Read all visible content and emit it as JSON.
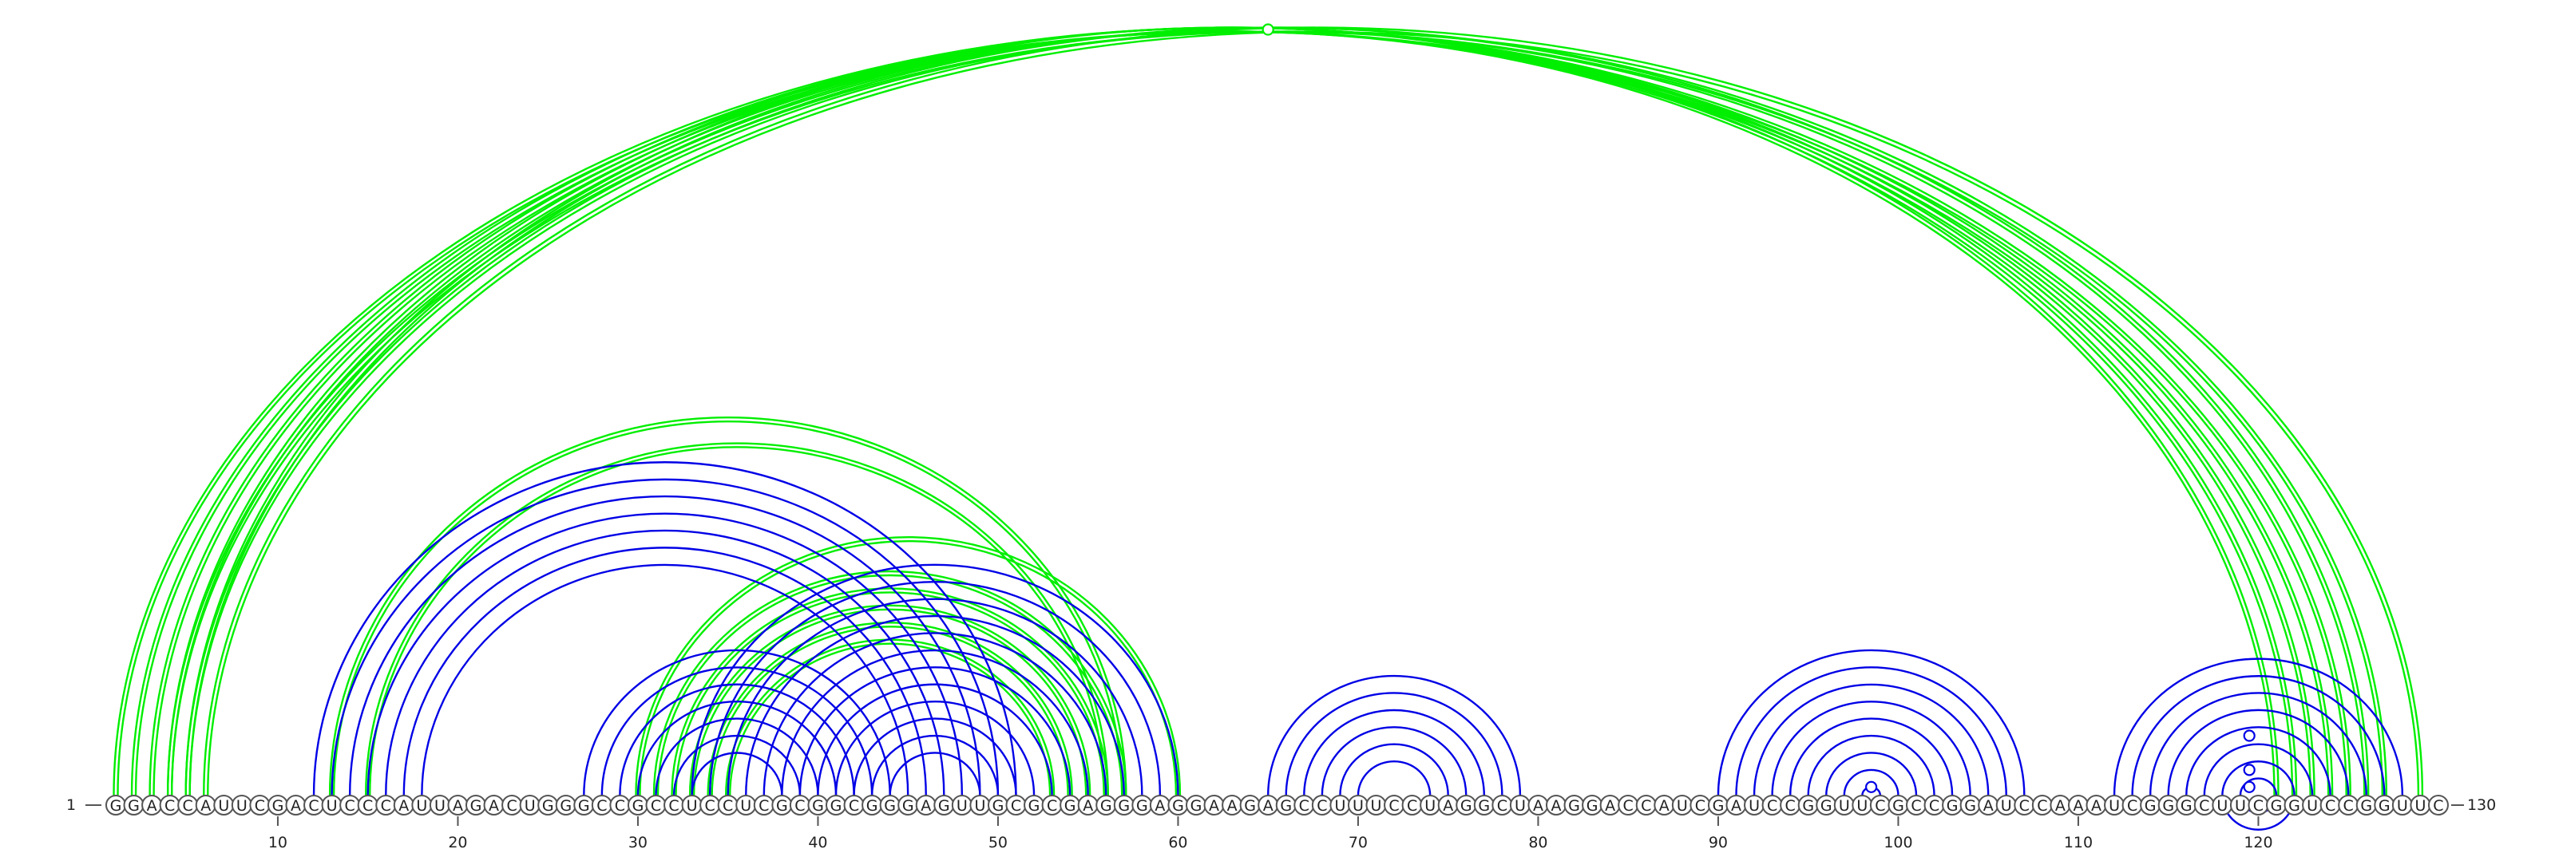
{
  "sequence": "GGACCAUUCGACUCCCAUUAGACUGGGCCGCCUCCUCGCGGCGGGAGUUGCGCGAGGGAGGAAGAGCCUUUCCUAGGCUAAGGACCAUCGAUCCGGUUCGCCGGAUCCAAAUCGGGCUUCGGUCCGGUUC",
  "start_label": "1",
  "end_label": "130",
  "ticks": [
    10,
    20,
    30,
    40,
    50,
    60,
    70,
    80,
    90,
    100,
    110,
    120
  ],
  "colors": {
    "pair": "#0000e6",
    "interaction": "#00ee00"
  },
  "blue_helices": [
    [
      12,
      51,
      7
    ],
    [
      27,
      44,
      7
    ],
    [
      33,
      60,
      12
    ],
    [
      65,
      79,
      6
    ],
    [
      90,
      107,
      10
    ],
    [
      112,
      128,
      11
    ]
  ],
  "green_helices": [
    [
      1,
      125,
      5
    ],
    [
      13,
      57,
      1
    ],
    [
      15,
      56,
      1
    ],
    [
      30,
      60,
      1
    ],
    [
      31,
      57,
      1
    ],
    [
      32,
      56,
      1
    ],
    [
      33,
      55,
      1
    ],
    [
      34,
      54,
      1
    ],
    [
      35,
      53,
      1
    ]
  ],
  "green_pairs": [
    [
      4,
      127
    ],
    [
      5,
      126
    ],
    [
      6,
      129
    ]
  ],
  "loop_markers": [
    {
      "i": 1,
      "j": 129,
      "color": "interaction"
    },
    {
      "i": 98,
      "j": 99,
      "color": "pair"
    },
    {
      "i": 119,
      "j": 120,
      "color": "pair"
    },
    {
      "i": 118,
      "j": 121,
      "color": "pair"
    },
    {
      "i": 116,
      "j": 123,
      "color": "pair"
    }
  ]
}
